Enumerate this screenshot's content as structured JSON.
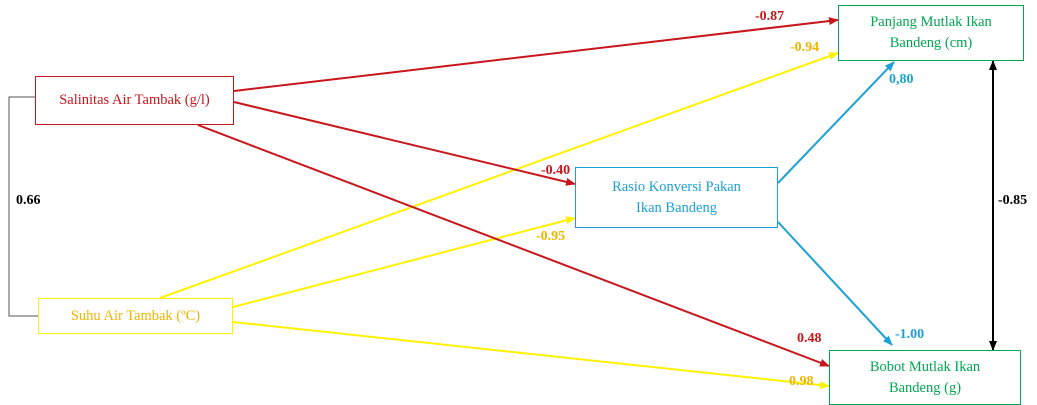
{
  "colors": {
    "red": "#c8161d",
    "yellow": "#fff200",
    "yellow_text": "#f0b400",
    "blue": "#1ba1d8",
    "green": "#00a651",
    "black": "#000000"
  },
  "nodes": {
    "salinitas": {
      "label": "Salinitas Air Tambak (g/l)"
    },
    "suhu": {
      "label": "Suhu Air Tambak (ºC)"
    },
    "rasio": {
      "label": "Rasio Konversi Pakan\nIkan Bandeng"
    },
    "panjang": {
      "label": "Panjang Mutlak Ikan\nBandeng (cm)"
    },
    "bobot": {
      "label": "Bobot Mutlak Ikan\nBandeng (g)"
    }
  },
  "coefficients": {
    "salinitas_panjang": "-0.87",
    "suhu_panjang": "-0.94",
    "rasio_panjang": "0,80",
    "salinitas_rasio": "-0.40",
    "suhu_rasio": "-0.95",
    "salinitas_bobot": "0.48",
    "rasio_bobot": "-1.00",
    "suhu_bobot": "0.98",
    "salinitas_suhu": "0.66",
    "panjang_bobot": "-0.85"
  }
}
